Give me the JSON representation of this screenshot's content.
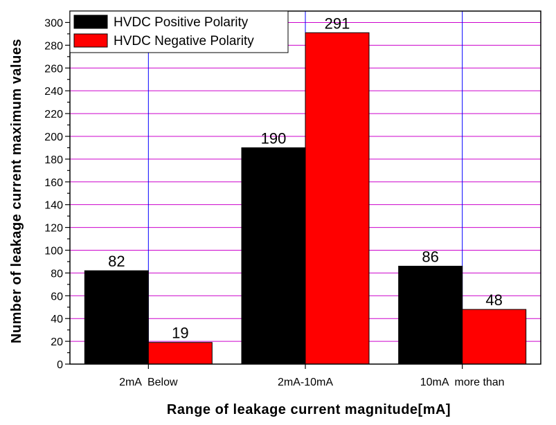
{
  "chart_data": {
    "type": "bar",
    "categories": [
      "2mA  Below",
      "2mA-10mA",
      "10mA  more than"
    ],
    "series": [
      {
        "name": "HVDC Positive Polarity",
        "values": [
          82,
          190,
          86
        ],
        "color": "#000000"
      },
      {
        "name": "HVDC Negative Polarity",
        "values": [
          19,
          291,
          48
        ],
        "color": "#ff0000"
      }
    ],
    "xlabel": "Range of leakage current magnitude[mA]",
    "ylabel": "Number of leakage current maximum values",
    "ylim": [
      0,
      310
    ],
    "yticks": [
      0,
      20,
      40,
      60,
      80,
      100,
      120,
      140,
      160,
      180,
      200,
      220,
      240,
      260,
      280,
      300
    ],
    "grid": true,
    "grid_colors": {
      "vertical": "#0000ff",
      "horizontal": "#cc00cc"
    },
    "legend_position": "top-left"
  }
}
